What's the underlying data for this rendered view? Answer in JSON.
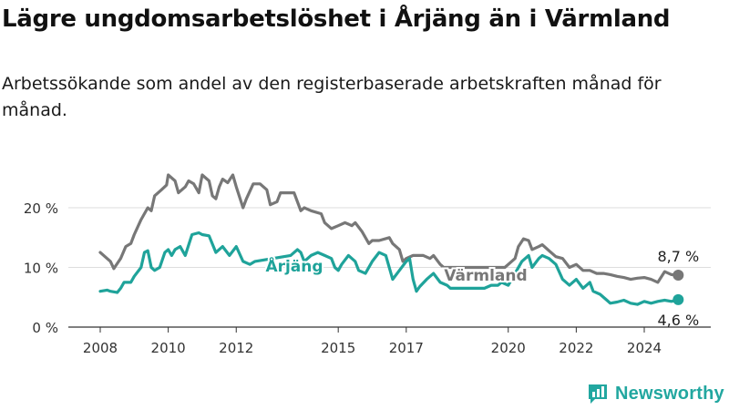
{
  "title": "Lägre ungdomsarbetslöshet i Årjäng än i Värmland",
  "subtitle": "Arbetssökande som andel av den registerbaserade arbetskraften månad för månad.",
  "brand": {
    "name": "Newsworthy",
    "icon": "newsworthy-logo-icon",
    "color": "#22a7a0"
  },
  "chart_data": {
    "type": "line",
    "grid": true,
    "ylim": [
      0,
      25
    ],
    "xlim": [
      2008,
      2025.3
    ],
    "yticks": [
      0,
      10,
      20
    ],
    "ytick_labels": [
      "0 %",
      "10 %",
      "20 %"
    ],
    "xticks": [
      2008,
      2010,
      2012,
      2015,
      2017,
      2020,
      2022,
      2024
    ],
    "xtick_labels": [
      "2008",
      "2010",
      "2012",
      "2015",
      "2017",
      "2020",
      "2022",
      "2024"
    ],
    "series": [
      {
        "name": "Värmland",
        "color": "#777777",
        "end_label": "8,7 %",
        "points": [
          [
            2008.0,
            12.5
          ],
          [
            2008.3,
            11.0
          ],
          [
            2008.4,
            9.8
          ],
          [
            2008.6,
            11.5
          ],
          [
            2008.75,
            13.5
          ],
          [
            2008.9,
            14.0
          ],
          [
            2009.0,
            15.5
          ],
          [
            2009.2,
            18.0
          ],
          [
            2009.4,
            20.0
          ],
          [
            2009.5,
            19.5
          ],
          [
            2009.6,
            22.0
          ],
          [
            2009.8,
            23.0
          ],
          [
            2009.95,
            23.8
          ],
          [
            2010.0,
            25.5
          ],
          [
            2010.2,
            24.5
          ],
          [
            2010.3,
            22.5
          ],
          [
            2010.5,
            23.5
          ],
          [
            2010.6,
            24.5
          ],
          [
            2010.75,
            24.0
          ],
          [
            2010.9,
            22.5
          ],
          [
            2011.0,
            25.5
          ],
          [
            2011.2,
            24.5
          ],
          [
            2011.3,
            22.0
          ],
          [
            2011.4,
            21.5
          ],
          [
            2011.5,
            23.5
          ],
          [
            2011.6,
            24.8
          ],
          [
            2011.75,
            24.2
          ],
          [
            2011.9,
            25.5
          ],
          [
            2012.0,
            23.5
          ],
          [
            2012.2,
            20.0
          ],
          [
            2012.3,
            21.5
          ],
          [
            2012.5,
            24.0
          ],
          [
            2012.7,
            24.0
          ],
          [
            2012.9,
            23.0
          ],
          [
            2013.0,
            20.5
          ],
          [
            2013.2,
            21.0
          ],
          [
            2013.3,
            22.5
          ],
          [
            2013.5,
            22.5
          ],
          [
            2013.7,
            22.5
          ],
          [
            2013.9,
            19.5
          ],
          [
            2014.0,
            20.0
          ],
          [
            2014.2,
            19.5
          ],
          [
            2014.5,
            19.0
          ],
          [
            2014.6,
            17.5
          ],
          [
            2014.8,
            16.5
          ],
          [
            2015.0,
            17.0
          ],
          [
            2015.2,
            17.5
          ],
          [
            2015.4,
            17.0
          ],
          [
            2015.5,
            17.5
          ],
          [
            2015.7,
            16.0
          ],
          [
            2015.9,
            14.0
          ],
          [
            2016.0,
            14.5
          ],
          [
            2016.2,
            14.5
          ],
          [
            2016.5,
            15.0
          ],
          [
            2016.6,
            14.0
          ],
          [
            2016.8,
            13.0
          ],
          [
            2016.9,
            11.0
          ],
          [
            2017.0,
            11.5
          ],
          [
            2017.2,
            12.0
          ],
          [
            2017.5,
            12.0
          ],
          [
            2017.7,
            11.5
          ],
          [
            2017.8,
            12.0
          ],
          [
            2018.0,
            10.5
          ],
          [
            2018.1,
            10.0
          ],
          [
            2019.9,
            10.0
          ],
          [
            2020.0,
            10.5
          ],
          [
            2020.2,
            11.5
          ],
          [
            2020.3,
            13.5
          ],
          [
            2020.45,
            14.8
          ],
          [
            2020.6,
            14.5
          ],
          [
            2020.7,
            13.0
          ],
          [
            2020.9,
            13.5
          ],
          [
            2021.0,
            13.8
          ],
          [
            2021.2,
            12.8
          ],
          [
            2021.4,
            11.8
          ],
          [
            2021.6,
            11.5
          ],
          [
            2021.8,
            10.0
          ],
          [
            2022.0,
            10.5
          ],
          [
            2022.2,
            9.5
          ],
          [
            2022.4,
            9.5
          ],
          [
            2022.6,
            9.0
          ],
          [
            2022.8,
            9.0
          ],
          [
            2023.0,
            8.8
          ],
          [
            2023.2,
            8.5
          ],
          [
            2023.4,
            8.3
          ],
          [
            2023.6,
            8.0
          ],
          [
            2023.8,
            8.2
          ],
          [
            2024.0,
            8.3
          ],
          [
            2024.2,
            8.0
          ],
          [
            2024.4,
            7.5
          ],
          [
            2024.6,
            9.3
          ],
          [
            2024.8,
            8.8
          ],
          [
            2025.0,
            8.7
          ]
        ]
      },
      {
        "name": "Årjäng",
        "color": "#1fa39a",
        "end_label": "4,6 %",
        "points": [
          [
            2008.0,
            6.0
          ],
          [
            2008.2,
            6.2
          ],
          [
            2008.3,
            6.0
          ],
          [
            2008.5,
            5.8
          ],
          [
            2008.6,
            6.5
          ],
          [
            2008.7,
            7.5
          ],
          [
            2008.9,
            7.5
          ],
          [
            2009.0,
            8.5
          ],
          [
            2009.2,
            10.0
          ],
          [
            2009.3,
            12.5
          ],
          [
            2009.4,
            12.8
          ],
          [
            2009.5,
            10.0
          ],
          [
            2009.6,
            9.5
          ],
          [
            2009.75,
            10.0
          ],
          [
            2009.9,
            12.5
          ],
          [
            2010.0,
            13.0
          ],
          [
            2010.1,
            12.0
          ],
          [
            2010.2,
            13.0
          ],
          [
            2010.35,
            13.5
          ],
          [
            2010.5,
            12.0
          ],
          [
            2010.7,
            15.5
          ],
          [
            2010.9,
            15.8
          ],
          [
            2011.0,
            15.5
          ],
          [
            2011.2,
            15.3
          ],
          [
            2011.4,
            12.5
          ],
          [
            2011.6,
            13.5
          ],
          [
            2011.8,
            12.0
          ],
          [
            2012.0,
            13.5
          ],
          [
            2012.2,
            11.0
          ],
          [
            2012.4,
            10.5
          ],
          [
            2012.55,
            11.0
          ],
          [
            2013.6,
            12.0
          ],
          [
            2013.8,
            13.0
          ],
          [
            2013.9,
            12.5
          ],
          [
            2014.0,
            11.0
          ],
          [
            2014.2,
            12.0
          ],
          [
            2014.4,
            12.5
          ],
          [
            2014.6,
            12.0
          ],
          [
            2014.8,
            11.5
          ],
          [
            2014.9,
            10.0
          ],
          [
            2015.0,
            9.5
          ],
          [
            2015.1,
            10.5
          ],
          [
            2015.3,
            12.0
          ],
          [
            2015.5,
            11.0
          ],
          [
            2015.6,
            9.5
          ],
          [
            2015.8,
            9.0
          ],
          [
            2016.0,
            11.0
          ],
          [
            2016.2,
            12.5
          ],
          [
            2016.4,
            12.0
          ],
          [
            2016.6,
            8.0
          ],
          [
            2016.8,
            9.5
          ],
          [
            2017.0,
            11.0
          ],
          [
            2017.1,
            11.5
          ],
          [
            2017.2,
            8.0
          ],
          [
            2017.3,
            6.0
          ],
          [
            2017.4,
            6.8
          ],
          [
            2017.6,
            8.0
          ],
          [
            2017.8,
            9.0
          ],
          [
            2018.0,
            7.5
          ],
          [
            2018.2,
            7.0
          ],
          [
            2018.3,
            6.5
          ],
          [
            2019.3,
            6.5
          ],
          [
            2019.5,
            7.0
          ],
          [
            2019.7,
            7.0
          ],
          [
            2019.8,
            7.5
          ],
          [
            2020.0,
            7.0
          ],
          [
            2020.2,
            9.0
          ],
          [
            2020.4,
            11.0
          ],
          [
            2020.6,
            12.0
          ],
          [
            2020.7,
            10.0
          ],
          [
            2020.9,
            11.5
          ],
          [
            2021.0,
            12.0
          ],
          [
            2021.2,
            11.5
          ],
          [
            2021.4,
            10.5
          ],
          [
            2021.6,
            8.0
          ],
          [
            2021.8,
            7.0
          ],
          [
            2022.0,
            8.0
          ],
          [
            2022.2,
            6.5
          ],
          [
            2022.4,
            7.5
          ],
          [
            2022.5,
            6.0
          ],
          [
            2022.7,
            5.5
          ],
          [
            2022.9,
            4.5
          ],
          [
            2023.0,
            4.0
          ],
          [
            2023.2,
            4.2
          ],
          [
            2023.4,
            4.5
          ],
          [
            2023.6,
            4.0
          ],
          [
            2023.8,
            3.8
          ],
          [
            2024.0,
            4.3
          ],
          [
            2024.2,
            4.0
          ],
          [
            2024.4,
            4.3
          ],
          [
            2024.6,
            4.5
          ],
          [
            2024.8,
            4.3
          ],
          [
            2025.0,
            4.6
          ]
        ]
      }
    ],
    "inline_labels": [
      "Årjäng",
      "Värmland"
    ]
  }
}
